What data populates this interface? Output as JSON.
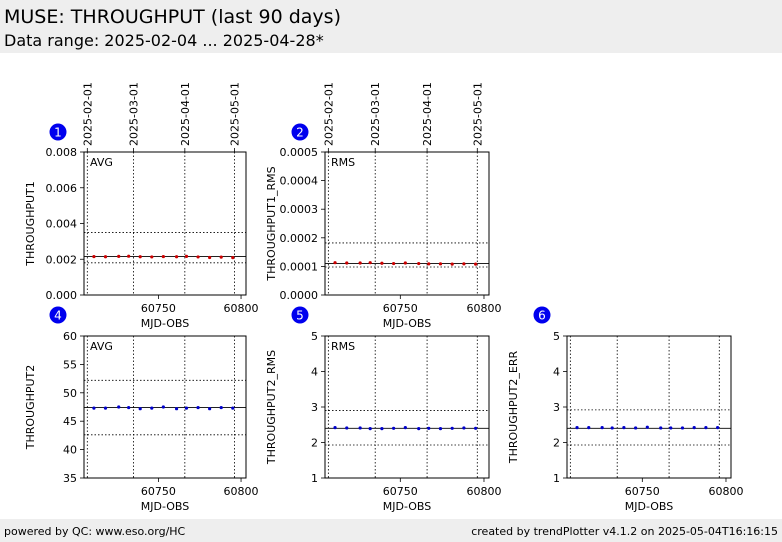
{
  "header": {
    "title": "MUSE: THROUGHPUT (last 90 days)",
    "subtitle": "Data range: 2025-02-04 ... 2025-04-28*"
  },
  "footer": {
    "left": "powered by QC: www.eso.org/HC",
    "right": "created by trendPlotter v4.1.2 on 2025-05-04T16:16:15"
  },
  "colors": {
    "badge": "#0000ee",
    "point_red": "#cc0000",
    "point_blue": "#0000cc",
    "header_bg": "#eeeeee"
  },
  "chart_data": [
    {
      "type": "scatter",
      "badge": "1",
      "label": "AVG",
      "xlabel": "MJD-OBS",
      "ylabel": "THROUGHPUT1",
      "xlim": [
        60705,
        60803
      ],
      "ylim": [
        0,
        0.008
      ],
      "yticks": [
        "0.000",
        "0.002",
        "0.004",
        "0.006",
        "0.008"
      ],
      "xticks": [
        "60750",
        "60800"
      ],
      "date_ticks": [
        "2025-02-01",
        "2025-03-01",
        "2025-04-01",
        "2025-05-01"
      ],
      "date_mjd": [
        60707,
        60735,
        60766,
        60796
      ],
      "date_labels_visible": true,
      "ref_line": 0.00215,
      "ref_band": [
        0.0018,
        0.0035
      ],
      "point_color": "point_red",
      "x": [
        60711,
        60718,
        60726,
        60732,
        60739,
        60746,
        60753,
        60761,
        60767,
        60774,
        60781,
        60788,
        60795
      ],
      "y": [
        0.00215,
        0.00214,
        0.00216,
        0.00217,
        0.00214,
        0.00213,
        0.00215,
        0.00214,
        0.00216,
        0.00213,
        0.0021,
        0.00212,
        0.00209
      ]
    },
    {
      "type": "scatter",
      "badge": "2",
      "label": "RMS",
      "xlabel": "MJD-OBS",
      "ylabel": "THROUGHPUT1_RMS",
      "xlim": [
        60705,
        60803
      ],
      "ylim": [
        0,
        0.0005
      ],
      "yticks": [
        "0.0000",
        "0.0001",
        "0.0002",
        "0.0003",
        "0.0004",
        "0.0005"
      ],
      "xticks": [
        "60750",
        "60800"
      ],
      "date_ticks": [
        "2025-02-01",
        "2025-03-01",
        "2025-04-01",
        "2025-05-01"
      ],
      "date_mjd": [
        60707,
        60735,
        60766,
        60796
      ],
      "date_labels_visible": true,
      "ref_line": 0.00011,
      "ref_band": [
        9.8e-05,
        0.000182
      ],
      "point_color": "point_red",
      "x": [
        60711,
        60718,
        60726,
        60732,
        60739,
        60746,
        60753,
        60761,
        60767,
        60774,
        60781,
        60788,
        60795
      ],
      "y": [
        0.000113,
        0.000112,
        0.000112,
        0.000113,
        0.000111,
        0.00011,
        0.000112,
        0.00011,
        0.000109,
        0.000109,
        0.000108,
        0.000109,
        0.000108
      ]
    },
    {
      "type": "scatter",
      "badge": "4",
      "label": "AVG",
      "xlabel": "MJD-OBS",
      "ylabel": "THROUGHPUT2",
      "xlim": [
        60705,
        60803
      ],
      "ylim": [
        35,
        60
      ],
      "yticks": [
        "35",
        "40",
        "45",
        "50",
        "55",
        "60"
      ],
      "xticks": [
        "60750",
        "60800"
      ],
      "date_ticks": [
        "2025-02-01",
        "2025-03-01",
        "2025-04-01",
        "2025-05-01"
      ],
      "date_mjd": [
        60707,
        60735,
        60766,
        60796
      ],
      "date_labels_visible": false,
      "ref_line": 47.4,
      "ref_band": [
        42.6,
        52.2
      ],
      "point_color": "point_blue",
      "x": [
        60711,
        60718,
        60726,
        60732,
        60739,
        60746,
        60753,
        60761,
        60767,
        60774,
        60781,
        60788,
        60795
      ],
      "y": [
        47.3,
        47.3,
        47.5,
        47.4,
        47.2,
        47.3,
        47.5,
        47.2,
        47.3,
        47.4,
        47.2,
        47.4,
        47.3
      ]
    },
    {
      "type": "scatter",
      "badge": "5",
      "label": "RMS",
      "xlabel": "MJD-OBS",
      "ylabel": "THROUGHPUT2_RMS",
      "xlim": [
        60705,
        60803
      ],
      "ylim": [
        1,
        5
      ],
      "yticks": [
        "1",
        "2",
        "3",
        "4",
        "5"
      ],
      "xticks": [
        "60750",
        "60800"
      ],
      "date_ticks": [
        "2025-02-01",
        "2025-03-01",
        "2025-04-01",
        "2025-05-01"
      ],
      "date_mjd": [
        60707,
        60735,
        60766,
        60796
      ],
      "date_labels_visible": false,
      "ref_line": 2.4,
      "ref_band": [
        1.93,
        2.9
      ],
      "point_color": "point_blue",
      "x": [
        60711,
        60718,
        60726,
        60732,
        60739,
        60746,
        60753,
        60761,
        60767,
        60774,
        60781,
        60788,
        60795
      ],
      "y": [
        2.42,
        2.41,
        2.41,
        2.39,
        2.39,
        2.4,
        2.42,
        2.39,
        2.4,
        2.39,
        2.4,
        2.41,
        2.4
      ]
    },
    {
      "type": "scatter",
      "badge": "6",
      "label": "",
      "xlabel": "MJD-OBS",
      "ylabel": "THROUGHPUT2_ERR",
      "xlim": [
        60705,
        60803
      ],
      "ylim": [
        1,
        5
      ],
      "yticks": [
        "1",
        "2",
        "3",
        "4",
        "5"
      ],
      "xticks": [
        "60750",
        "60800"
      ],
      "date_ticks": [
        "2025-02-01",
        "2025-03-01",
        "2025-04-01",
        "2025-05-01"
      ],
      "date_mjd": [
        60707,
        60735,
        60766,
        60796
      ],
      "date_labels_visible": false,
      "ref_line": 2.4,
      "ref_band": [
        1.93,
        2.92
      ],
      "point_color": "point_blue",
      "x": [
        60711,
        60718,
        60726,
        60732,
        60739,
        60746,
        60753,
        60761,
        60767,
        60774,
        60781,
        60788,
        60795
      ],
      "y": [
        2.42,
        2.42,
        2.42,
        2.41,
        2.42,
        2.41,
        2.43,
        2.41,
        2.41,
        2.41,
        2.42,
        2.42,
        2.42
      ]
    }
  ]
}
